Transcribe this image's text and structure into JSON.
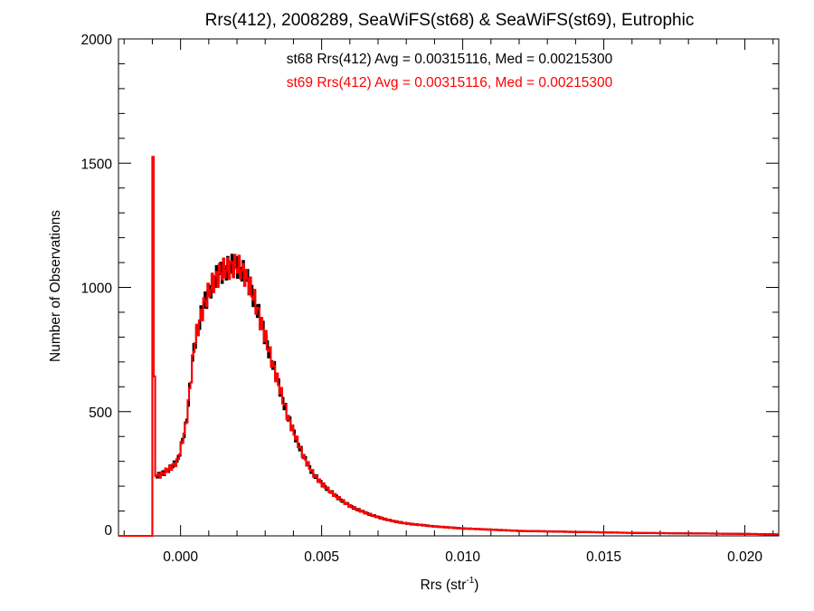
{
  "chart_data": {
    "type": "line",
    "title": "Rrs(412), 2008289, SeaWiFS(st68) & SeaWiFS(st69), Eutrophic",
    "xlabel": "Rrs (str",
    "xlabel_sup": "-1",
    "xlabel_close": ")",
    "ylabel": "Number of Observations",
    "xlim": [
      -0.0022,
      0.0212
    ],
    "ylim": [
      0,
      2000
    ],
    "xticks": [
      0.0,
      0.005,
      0.01,
      0.015,
      0.02
    ],
    "xtick_labels": [
      "0.000",
      "0.005",
      "0.010",
      "0.015",
      "0.020"
    ],
    "yticks": [
      0,
      500,
      1000,
      1500,
      2000
    ],
    "ytick_labels": [
      "0",
      "500",
      "1000",
      "1500",
      "2000"
    ],
    "grid": false,
    "annotations": [
      {
        "text": "st68 Rrs(412) Avg = 0.00315116, Med = 0.00215300",
        "color": "#000000"
      },
      {
        "text": "st69 Rrs(412) Avg = 0.00315116, Med = 0.00215300",
        "color": "#ff0000"
      }
    ],
    "series": [
      {
        "label": "st68",
        "color": "#000000",
        "x": [
          -0.0022,
          -0.001,
          -0.00098,
          -0.0009,
          -0.0007,
          -0.0004,
          -0.0001,
          0.0002,
          0.0005,
          0.0008,
          0.0011,
          0.0014,
          0.0017,
          0.002,
          0.0023,
          0.0026,
          0.0029,
          0.0032,
          0.0035,
          0.0038,
          0.0041,
          0.0044,
          0.0047,
          0.005,
          0.0055,
          0.006,
          0.0065,
          0.007,
          0.0075,
          0.008,
          0.009,
          0.01,
          0.011,
          0.012,
          0.014,
          0.016,
          0.018,
          0.02,
          0.0212
        ],
        "y": [
          0,
          0,
          1525,
          240,
          245,
          270,
          300,
          450,
          780,
          920,
          1010,
          1060,
          1080,
          1090,
          1050,
          960,
          840,
          720,
          600,
          480,
          390,
          310,
          250,
          210,
          160,
          120,
          95,
          75,
          60,
          50,
          38,
          30,
          25,
          20,
          16,
          12,
          10,
          8,
          6
        ]
      },
      {
        "label": "st69",
        "color": "#ff0000",
        "x": [
          -0.0022,
          -0.001,
          -0.00098,
          -0.0009,
          -0.0007,
          -0.0004,
          -0.0001,
          0.0002,
          0.0005,
          0.0008,
          0.0011,
          0.0014,
          0.0017,
          0.002,
          0.0023,
          0.0026,
          0.0029,
          0.0032,
          0.0035,
          0.0038,
          0.0041,
          0.0044,
          0.0047,
          0.005,
          0.0055,
          0.006,
          0.0065,
          0.007,
          0.0075,
          0.008,
          0.009,
          0.01,
          0.011,
          0.012,
          0.014,
          0.016,
          0.018,
          0.02,
          0.0212
        ],
        "y": [
          0,
          0,
          1525,
          240,
          245,
          270,
          300,
          450,
          780,
          920,
          1010,
          1060,
          1080,
          1090,
          1050,
          960,
          840,
          720,
          600,
          480,
          390,
          310,
          250,
          210,
          160,
          120,
          95,
          75,
          60,
          50,
          38,
          30,
          25,
          20,
          16,
          12,
          10,
          8,
          6
        ]
      }
    ]
  }
}
